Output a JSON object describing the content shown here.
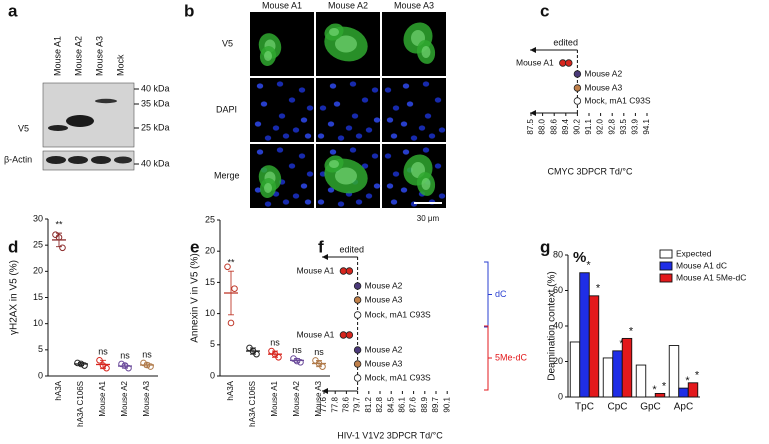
{
  "panel_labels": [
    "a",
    "b",
    "c",
    "d",
    "e",
    "f",
    "g"
  ],
  "blot": {
    "lanes": [
      "Mouse A1",
      "Mouse A2",
      "Mouse A3",
      "Mock"
    ],
    "rows": [
      "V5",
      "β-Actin"
    ],
    "markers": [
      "40 kDa",
      "35 kDa",
      "25 kDa",
      "40 kDa"
    ]
  },
  "micrographs": {
    "columns": [
      "Mouse A1",
      "Mouse A2",
      "Mouse A3"
    ],
    "rows": [
      "V5",
      "DAPI",
      "Merge"
    ],
    "scale_bar": "30 μm"
  },
  "chart_data": [
    {
      "type": "dot",
      "annotation": "edited",
      "x_label": "CMYC 3DPCR Td/°C",
      "xticks": [
        87.5,
        {
          "value": 88,
          "label": "88.0"
        },
        88.6,
        89.4,
        90.2,
        91.1,
        {
          "value": 92,
          "label": "92.0"
        },
        92.8,
        93.5,
        93.9,
        94.1
      ],
      "reference": 90.2,
      "series": [
        {
          "name": "Mouse A1",
          "color": "#d7261e",
          "values": [
            89.4,
            89.4
          ]
        },
        {
          "name": "Mouse A2",
          "color": "#4b3a7a",
          "values": [
            90.2
          ]
        },
        {
          "name": "Mouse A3",
          "color": "#c0804a",
          "values": [
            90.2
          ]
        },
        {
          "name": "Mock, mA1 C93S",
          "color": "#ffffff",
          "values": [
            90.2
          ]
        }
      ]
    },
    {
      "type": "dot_mean",
      "y_label": "γH2AX in V5 (%)",
      "categories": [
        "hA3A",
        "hA3A C106S",
        "Mouse A1",
        "Mouse A2",
        "Mouse A3"
      ],
      "colors": [
        "#8b2a2a",
        "#222222",
        "#d7261e",
        "#6a4a9a",
        "#b07a4a"
      ],
      "values": [
        [
          27,
          24.5,
          26.5
        ],
        [
          2.5,
          2.0,
          2.3
        ],
        [
          3.0,
          1.5,
          2.0
        ],
        [
          2.3,
          1.5,
          2.0
        ],
        [
          2.5,
          1.8,
          2.1
        ]
      ],
      "means": [
        26,
        2.3,
        2.2,
        1.9,
        2.1
      ],
      "errors": [
        1.3,
        0.3,
        0.8,
        0.4,
        0.4
      ],
      "annotations": [
        "**",
        null,
        "ns",
        "ns",
        "ns"
      ],
      "ylim": [
        0,
        30
      ],
      "yticks": [
        0,
        5,
        10,
        15,
        20,
        25,
        30
      ]
    },
    {
      "type": "dot_mean",
      "y_label": "Annexin V in V5 (%)",
      "categories": [
        "hA3A",
        "hA3A C106S",
        "Mouse A1",
        "Mouse A2",
        "Mouse A3"
      ],
      "colors": [
        "#c0392b",
        "#222222",
        "#d7261e",
        "#6a4a9a",
        "#b07a4a"
      ],
      "values": [
        [
          17.5,
          14,
          8.5
        ],
        [
          4.5,
          3.5,
          4.0
        ],
        [
          4.0,
          3.0,
          3.5
        ],
        [
          2.8,
          2.2,
          2.4
        ],
        [
          2.5,
          1.5,
          2.0
        ]
      ],
      "means": [
        13.3,
        4.0,
        3.5,
        2.5,
        2.0
      ],
      "errors": [
        3.5,
        0.5,
        0.5,
        0.3,
        0.5
      ],
      "annotations": [
        "**",
        null,
        "ns",
        "ns",
        "ns"
      ],
      "ylim": [
        0,
        25
      ],
      "yticks": [
        0,
        5,
        10,
        15,
        20,
        25
      ]
    },
    {
      "type": "dot",
      "annotation": "edited",
      "x_label": "HIV-1 V1V2   3DPCR Td/°C",
      "xticks": [
        77.6,
        77.8,
        78.6,
        79.7,
        81.2,
        82.8,
        84.5,
        86.1,
        87.6,
        88.9,
        89.7,
        90.1
      ],
      "reference": 79.7,
      "groups": [
        {
          "name": "dC",
          "color": "#2a3fd1",
          "series": [
            {
              "name": "Mouse A1",
              "color": "#d7261e",
              "values": [
                78.6,
                78.6
              ]
            },
            {
              "name": "Mouse A2",
              "color": "#4b3a7a",
              "values": [
                79.7
              ]
            },
            {
              "name": "Mouse A3",
              "color": "#c0804a",
              "values": [
                79.7
              ]
            },
            {
              "name": "Mock, mA1 C93S",
              "color": "#ffffff",
              "values": [
                79.7
              ]
            }
          ]
        },
        {
          "name": "5Me-dC",
          "color": "#e3191c",
          "series": [
            {
              "name": "Mouse A1",
              "color": "#d7261e",
              "values": [
                78.6,
                78.6
              ]
            },
            {
              "name": "Mouse A2",
              "color": "#4b3a7a",
              "values": [
                79.7
              ]
            },
            {
              "name": "Mouse A3",
              "color": "#c0804a",
              "values": [
                79.7
              ]
            },
            {
              "name": "Mock, mA1 C93S",
              "color": "#ffffff",
              "values": [
                79.7
              ]
            }
          ]
        }
      ]
    },
    {
      "type": "bar",
      "y_label": "Deamination context (%)",
      "annotation": "%",
      "categories": [
        "TpC",
        "CpC",
        "GpC",
        "ApC"
      ],
      "series": [
        {
          "name": "Expected",
          "color": "#ffffff",
          "values": [
            31,
            22,
            18,
            29
          ],
          "annotations": [
            null,
            null,
            null,
            null
          ]
        },
        {
          "name": "Mouse A1 dC",
          "color": "#1f2ee6",
          "values": [
            70,
            26,
            0,
            5
          ],
          "annotations": [
            "*",
            "*",
            "*",
            "*"
          ]
        },
        {
          "name": "Mouse A1 5Me-dC",
          "color": "#e3191c",
          "values": [
            57,
            33,
            2,
            8
          ],
          "annotations": [
            "*",
            "*",
            "*",
            "*"
          ]
        }
      ],
      "ylim": [
        0,
        80
      ],
      "yticks": [
        0,
        20,
        40,
        60,
        80
      ]
    }
  ]
}
